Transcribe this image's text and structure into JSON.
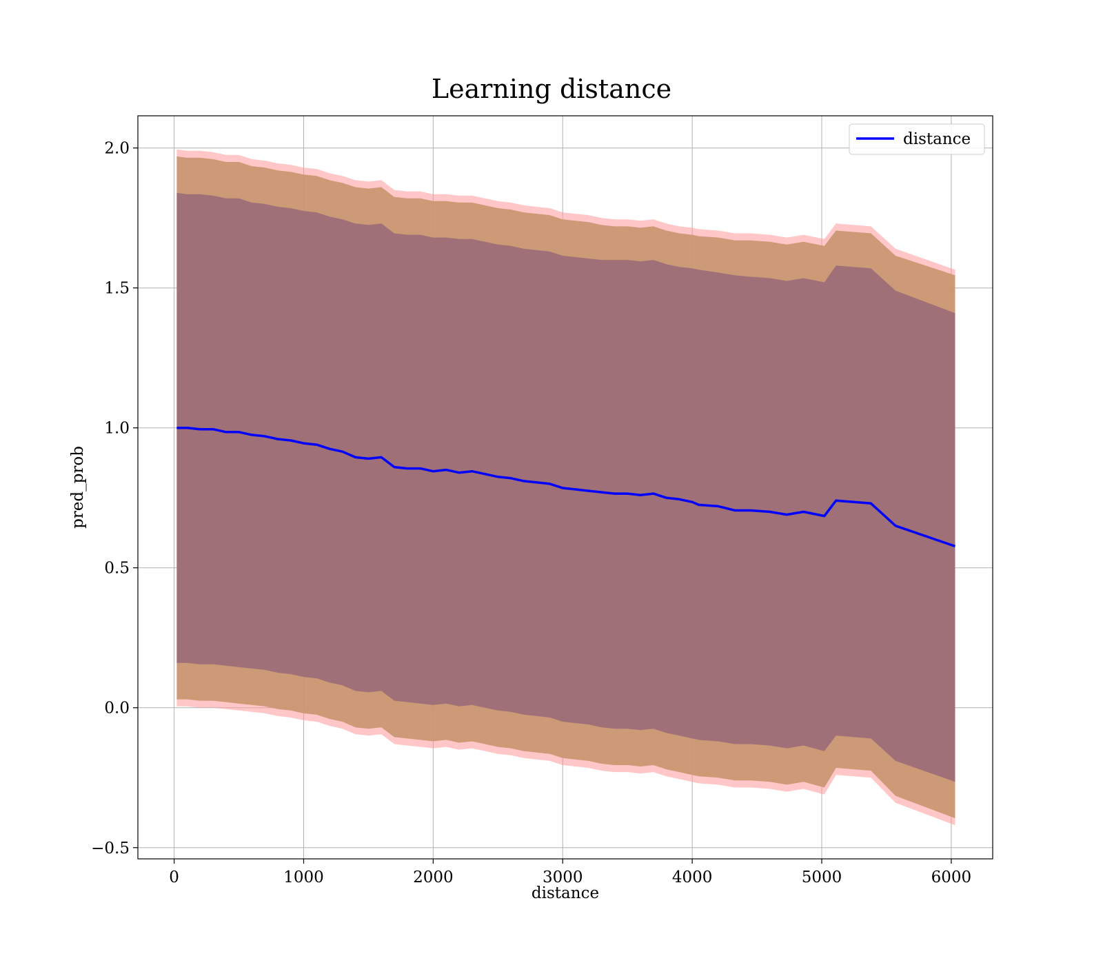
{
  "chart_data": {
    "type": "line",
    "title": "Learning distance",
    "xlabel": "distance",
    "ylabel": "pred_prob",
    "xlim": [
      -280,
      6320
    ],
    "ylim": [
      -0.54,
      2.115
    ],
    "xticks": [
      0,
      1000,
      2000,
      3000,
      4000,
      5000,
      6000
    ],
    "yticks": [
      -0.5,
      0.0,
      0.5,
      1.0,
      1.5,
      2.0
    ],
    "xtick_labels": [
      "0",
      "1000",
      "2000",
      "3000",
      "4000",
      "5000",
      "6000"
    ],
    "ytick_labels": [
      "−0.5",
      "0.0",
      "0.5",
      "1.0",
      "1.5",
      "2.0"
    ],
    "grid": true,
    "legend": {
      "position": "top-right",
      "entries": [
        "distance"
      ]
    },
    "x": [
      20,
      100,
      200,
      300,
      400,
      500,
      600,
      700,
      800,
      900,
      1000,
      1100,
      1200,
      1300,
      1400,
      1500,
      1600,
      1700,
      1800,
      1900,
      2000,
      2100,
      2200,
      2300,
      2400,
      2500,
      2600,
      2700,
      2800,
      2900,
      3000,
      3100,
      3200,
      3300,
      3400,
      3500,
      3600,
      3700,
      3800,
      3900,
      4000,
      4050,
      4200,
      4330,
      4450,
      4600,
      4730,
      4860,
      5020,
      5110,
      5380,
      5570,
      6030
    ],
    "series": [
      {
        "name": "distance",
        "color": "#0000ff",
        "values": [
          1.0,
          1.0,
          0.995,
          0.995,
          0.985,
          0.985,
          0.975,
          0.97,
          0.96,
          0.955,
          0.945,
          0.94,
          0.925,
          0.915,
          0.895,
          0.89,
          0.895,
          0.86,
          0.855,
          0.855,
          0.845,
          0.85,
          0.84,
          0.845,
          0.835,
          0.825,
          0.82,
          0.81,
          0.805,
          0.8,
          0.785,
          0.78,
          0.775,
          0.77,
          0.765,
          0.765,
          0.76,
          0.765,
          0.75,
          0.745,
          0.735,
          0.725,
          0.72,
          0.705,
          0.705,
          0.7,
          0.69,
          0.7,
          0.685,
          0.74,
          0.73,
          0.65,
          0.577
        ]
      }
    ],
    "bands": [
      {
        "color": "#ff9999",
        "opacity": 0.55,
        "upper": [
          1.995,
          1.99,
          1.99,
          1.985,
          1.975,
          1.975,
          1.96,
          1.955,
          1.945,
          1.94,
          1.93,
          1.925,
          1.91,
          1.9,
          1.885,
          1.88,
          1.885,
          1.85,
          1.845,
          1.845,
          1.835,
          1.835,
          1.83,
          1.83,
          1.82,
          1.81,
          1.805,
          1.795,
          1.79,
          1.785,
          1.77,
          1.765,
          1.76,
          1.75,
          1.745,
          1.745,
          1.74,
          1.745,
          1.73,
          1.72,
          1.715,
          1.71,
          1.705,
          1.695,
          1.695,
          1.69,
          1.68,
          1.69,
          1.675,
          1.73,
          1.72,
          1.64,
          1.565
        ],
        "lower": [
          0.005,
          0.005,
          0.0,
          0.0,
          -0.005,
          -0.01,
          -0.015,
          -0.02,
          -0.03,
          -0.035,
          -0.045,
          -0.05,
          -0.065,
          -0.075,
          -0.095,
          -0.1,
          -0.095,
          -0.13,
          -0.135,
          -0.14,
          -0.145,
          -0.14,
          -0.15,
          -0.145,
          -0.155,
          -0.165,
          -0.17,
          -0.18,
          -0.185,
          -0.19,
          -0.205,
          -0.21,
          -0.215,
          -0.225,
          -0.23,
          -0.23,
          -0.235,
          -0.23,
          -0.245,
          -0.255,
          -0.265,
          -0.27,
          -0.275,
          -0.285,
          -0.285,
          -0.29,
          -0.3,
          -0.29,
          -0.31,
          -0.24,
          -0.25,
          -0.34,
          -0.42
        ]
      },
      {
        "color": "#c8956f",
        "opacity": 0.9,
        "upper": [
          1.97,
          1.965,
          1.965,
          1.96,
          1.95,
          1.95,
          1.935,
          1.93,
          1.92,
          1.915,
          1.905,
          1.9,
          1.885,
          1.875,
          1.86,
          1.855,
          1.86,
          1.825,
          1.82,
          1.82,
          1.81,
          1.81,
          1.805,
          1.805,
          1.795,
          1.785,
          1.78,
          1.77,
          1.765,
          1.76,
          1.745,
          1.74,
          1.735,
          1.725,
          1.72,
          1.72,
          1.715,
          1.72,
          1.705,
          1.695,
          1.69,
          1.685,
          1.68,
          1.67,
          1.67,
          1.665,
          1.655,
          1.665,
          1.65,
          1.705,
          1.695,
          1.615,
          1.545
        ],
        "lower": [
          0.03,
          0.03,
          0.025,
          0.025,
          0.02,
          0.015,
          0.01,
          0.005,
          -0.005,
          -0.01,
          -0.02,
          -0.025,
          -0.04,
          -0.05,
          -0.07,
          -0.075,
          -0.07,
          -0.105,
          -0.11,
          -0.115,
          -0.12,
          -0.115,
          -0.125,
          -0.12,
          -0.13,
          -0.14,
          -0.145,
          -0.155,
          -0.16,
          -0.165,
          -0.18,
          -0.185,
          -0.19,
          -0.2,
          -0.205,
          -0.205,
          -0.21,
          -0.205,
          -0.22,
          -0.23,
          -0.24,
          -0.245,
          -0.25,
          -0.26,
          -0.26,
          -0.265,
          -0.275,
          -0.265,
          -0.285,
          -0.215,
          -0.225,
          -0.315,
          -0.395
        ]
      },
      {
        "color": "#a07078",
        "opacity": 1.0,
        "upper": [
          1.84,
          1.835,
          1.835,
          1.83,
          1.82,
          1.82,
          1.805,
          1.8,
          1.79,
          1.785,
          1.775,
          1.77,
          1.755,
          1.745,
          1.73,
          1.725,
          1.73,
          1.695,
          1.69,
          1.69,
          1.68,
          1.68,
          1.675,
          1.675,
          1.665,
          1.655,
          1.65,
          1.64,
          1.635,
          1.63,
          1.615,
          1.61,
          1.605,
          1.6,
          1.6,
          1.6,
          1.595,
          1.6,
          1.585,
          1.575,
          1.57,
          1.565,
          1.555,
          1.545,
          1.54,
          1.535,
          1.525,
          1.535,
          1.52,
          1.58,
          1.57,
          1.49,
          1.41
        ],
        "lower": [
          0.16,
          0.16,
          0.155,
          0.155,
          0.15,
          0.145,
          0.14,
          0.135,
          0.125,
          0.12,
          0.11,
          0.105,
          0.09,
          0.08,
          0.06,
          0.055,
          0.06,
          0.025,
          0.02,
          0.015,
          0.01,
          0.015,
          0.005,
          0.01,
          0.0,
          -0.01,
          -0.015,
          -0.025,
          -0.03,
          -0.035,
          -0.05,
          -0.055,
          -0.06,
          -0.07,
          -0.075,
          -0.075,
          -0.08,
          -0.075,
          -0.09,
          -0.1,
          -0.11,
          -0.115,
          -0.12,
          -0.13,
          -0.13,
          -0.135,
          -0.145,
          -0.135,
          -0.155,
          -0.1,
          -0.11,
          -0.19,
          -0.265
        ]
      }
    ]
  }
}
